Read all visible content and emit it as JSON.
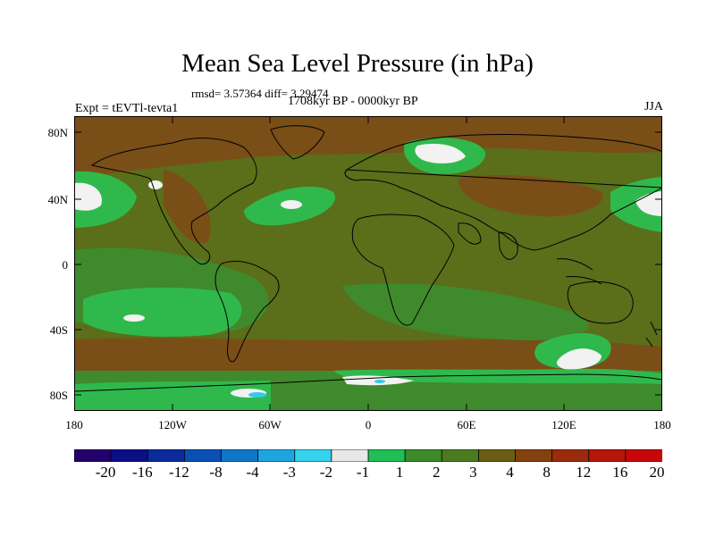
{
  "title": "Mean Sea Level Pressure (in hPa)",
  "stats": "rmsd= 3.57364 diff= 3.29474",
  "subtitle": "1708kyr BP - 0000kyr BP",
  "experiment": "Expt = tEVTl-tevta1",
  "season": "JJA",
  "lat_labels": [
    "80N",
    "40N",
    "0",
    "40S",
    "80S"
  ],
  "lon_labels": [
    "180",
    "120W",
    "60W",
    "0",
    "60E",
    "120E",
    "180"
  ],
  "colorbar": {
    "colors": [
      "#23006b",
      "#0a0f85",
      "#0b2b9c",
      "#0a4fb3",
      "#0f77c9",
      "#1ea5e0",
      "#35d2ee",
      "#e8e8e8",
      "#1fbf55",
      "#3e8a2b",
      "#4b7b1f",
      "#6a5d14",
      "#85400f",
      "#9c2a0c",
      "#b8160a",
      "#c8070a"
    ],
    "labels": [
      "-20",
      "-16",
      "-12",
      "-8",
      "-4",
      "-3",
      "-2",
      "-1",
      "1",
      "2",
      "3",
      "4",
      "8",
      "12",
      "16",
      "20"
    ]
  },
  "map_colors": {
    "base": "#5b6e1a",
    "high": "#7a4e17",
    "green": "#2fb94d",
    "white": "#f2f2f2",
    "cyan": "#35c9e8",
    "mid": "#3f8a2c"
  }
}
